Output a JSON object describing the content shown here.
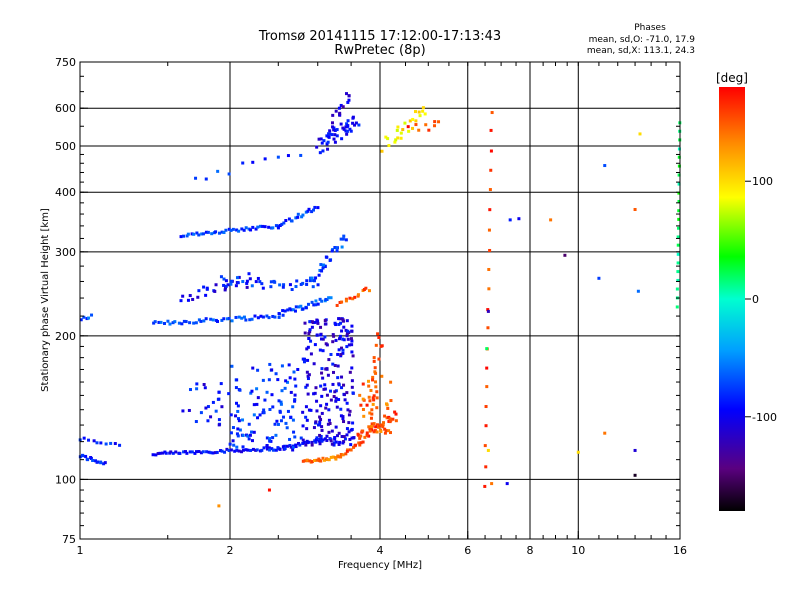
{
  "chart_data": {
    "type": "scatter",
    "title": "Tromsø 20141115 17:12:00-17:13:43",
    "subtitle": "RwPretec (8p)",
    "xlabel": "Frequency [MHz]",
    "ylabel": "Stationary phase Virtual Height [km]",
    "x_scale": "log",
    "y_scale": "log",
    "xlim": [
      1,
      16
    ],
    "ylim": [
      75,
      750
    ],
    "grid": true,
    "x_ticks": [
      {
        "value": 1,
        "label": "1"
      },
      {
        "value": 2,
        "label": "2"
      },
      {
        "value": 4,
        "label": "4"
      },
      {
        "value": 6,
        "label": "6"
      },
      {
        "value": 8,
        "label": "8"
      },
      {
        "value": 10,
        "label": "10"
      },
      {
        "value": 16,
        "label": "16"
      }
    ],
    "x_grid": [
      2,
      4,
      6,
      8,
      10
    ],
    "y_ticks": [
      {
        "value": 75,
        "label": "75"
      },
      {
        "value": 100,
        "label": "100"
      },
      {
        "value": 200,
        "label": "200"
      },
      {
        "value": 300,
        "label": "300"
      },
      {
        "value": 400,
        "label": "400"
      },
      {
        "value": 500,
        "label": "500"
      },
      {
        "value": 600,
        "label": "600"
      },
      {
        "value": 750,
        "label": "750"
      }
    ],
    "y_grid": [
      100,
      200,
      300,
      400,
      500,
      600
    ],
    "stats": {
      "title": "Phases",
      "line1": "mean, sd,O: -71.0, 17.9",
      "line2": "mean, sd,X: 113.1, 24.3"
    },
    "colorbar": {
      "label": "[deg]",
      "min": -180,
      "max": 180,
      "ticks": [
        {
          "value": 100,
          "label": "100"
        },
        {
          "value": 0,
          "label": "0"
        },
        {
          "value": -100,
          "label": "-100"
        }
      ]
    },
    "traces": [
      {
        "name": "",
        "f1": 1.0,
        "f2": 1.12,
        "h1": 112,
        "h2": 108,
        "n": 16,
        "phase": -85,
        "jitter": 0.02
      },
      {
        "name": "",
        "f1": 1.0,
        "f2": 1.2,
        "h1": 122,
        "h2": 118,
        "n": 10,
        "phase": -82,
        "jitter": 0.02
      },
      {
        "name": "",
        "f1": 1.4,
        "f2": 2.5,
        "h1": 113,
        "h2": 116,
        "n": 55,
        "phase": -96,
        "jitter": 0.015
      },
      {
        "name": "",
        "f1": 2.5,
        "f2": 3.2,
        "h1": 116,
        "h2": 122,
        "n": 25,
        "phase": -92,
        "jitter": 0.015
      },
      {
        "name": "",
        "f1": 2.8,
        "f2": 3.3,
        "h1": 109,
        "h2": 111,
        "n": 22,
        "phase": 140,
        "jitter": 0.015
      },
      {
        "name": "",
        "f1": 3.3,
        "f2": 3.7,
        "h1": 112,
        "h2": 120,
        "n": 16,
        "phase": 152,
        "jitter": 0.02
      },
      {
        "name": "",
        "f1": 3.6,
        "f2": 4.3,
        "h1": 122,
        "h2": 135,
        "n": 34,
        "phase": 160,
        "jitter": 0.05
      },
      {
        "name": "",
        "f1": 3.8,
        "f2": 4.0,
        "h1": 135,
        "h2": 200,
        "n": 22,
        "phase": 150,
        "jitter": 0.06
      },
      {
        "name": "",
        "f1": 1.4,
        "f2": 2.5,
        "h1": 212,
        "h2": 220,
        "n": 45,
        "phase": -75,
        "jitter": 0.02
      },
      {
        "name": "",
        "f1": 2.5,
        "f2": 3.2,
        "h1": 222,
        "h2": 240,
        "n": 30,
        "phase": -70,
        "jitter": 0.025
      },
      {
        "name": "",
        "f1": 1.6,
        "f2": 2.2,
        "h1": 240,
        "h2": 262,
        "n": 25,
        "phase": -100,
        "jitter": 0.06
      },
      {
        "name": "",
        "f1": 1.9,
        "f2": 3.0,
        "h1": 260,
        "h2": 255,
        "n": 35,
        "phase": -80,
        "jitter": 0.05
      },
      {
        "name": "",
        "f1": 2.9,
        "f2": 3.4,
        "h1": 260,
        "h2": 320,
        "n": 28,
        "phase": -70,
        "jitter": 0.05
      },
      {
        "name": "",
        "f1": 3.3,
        "f2": 3.8,
        "h1": 232,
        "h2": 250,
        "n": 14,
        "phase": 150,
        "jitter": 0.03
      },
      {
        "name": "",
        "f1": 1.0,
        "f2": 1.05,
        "h1": 215,
        "h2": 220,
        "n": 6,
        "phase": -70,
        "jitter": 0.02
      },
      {
        "name": "",
        "f1": 1.6,
        "f2": 2.5,
        "h1": 325,
        "h2": 340,
        "n": 40,
        "phase": -75,
        "jitter": 0.015
      },
      {
        "name": "",
        "f1": 2.5,
        "f2": 3.0,
        "h1": 340,
        "h2": 372,
        "n": 20,
        "phase": -78,
        "jitter": 0.02
      },
      {
        "name": "",
        "f1": 1.7,
        "f2": 2.8,
        "h1": 430,
        "h2": 475,
        "n": 10,
        "phase": -78,
        "jitter": 0.05
      },
      {
        "name": "",
        "f1": 3.0,
        "f2": 3.6,
        "h1": 500,
        "h2": 560,
        "n": 45,
        "phase": -95,
        "jitter": 0.08
      },
      {
        "name": "",
        "f1": 3.2,
        "f2": 3.5,
        "h1": 560,
        "h2": 650,
        "n": 15,
        "phase": -110,
        "jitter": 0.05
      },
      {
        "name": "",
        "f1": 4.1,
        "f2": 4.9,
        "h1": 500,
        "h2": 600,
        "n": 24,
        "phase": 95,
        "jitter": 0.07
      },
      {
        "name": "",
        "f1": 4.6,
        "f2": 5.3,
        "h1": 540,
        "h2": 555,
        "n": 8,
        "phase": 160,
        "jitter": 0.05
      },
      {
        "name": "",
        "f1": 6.5,
        "f2": 6.7,
        "h1": 97,
        "h2": 590,
        "n": 20,
        "phase": 160,
        "jitter": 0.01
      },
      {
        "name": "",
        "f1": 15.8,
        "f2": 16.0,
        "h1": 230,
        "h2": 560,
        "n": 22,
        "phase": 20,
        "jitter": 0.004
      }
    ],
    "clouds": [
      {
        "name": "",
        "f1": 2.0,
        "f2": 2.8,
        "h1": 115,
        "h2": 175,
        "n": 110,
        "phase": -80
      },
      {
        "name": "",
        "f1": 2.8,
        "f2": 3.55,
        "h1": 118,
        "h2": 220,
        "n": 220,
        "phase": -105
      },
      {
        "name": "",
        "f1": 1.6,
        "f2": 2.1,
        "h1": 130,
        "h2": 160,
        "n": 30,
        "phase": -90
      },
      {
        "name": "",
        "f1": 3.6,
        "f2": 4.3,
        "h1": 125,
        "h2": 165,
        "n": 40,
        "phase": 150
      }
    ],
    "points": [
      {
        "x": 1.9,
        "y": 88,
        "phase": 130
      },
      {
        "x": 2.4,
        "y": 95,
        "phase": 175
      },
      {
        "x": 6.6,
        "y": 225,
        "phase": -120
      },
      {
        "x": 6.7,
        "y": 98,
        "phase": 140
      },
      {
        "x": 7.2,
        "y": 98,
        "phase": -100
      },
      {
        "x": 7.3,
        "y": 350,
        "phase": -85
      },
      {
        "x": 7.6,
        "y": 352,
        "phase": -100
      },
      {
        "x": 8.8,
        "y": 350,
        "phase": 140
      },
      {
        "x": 9.4,
        "y": 295,
        "phase": -150
      },
      {
        "x": 11.0,
        "y": 264,
        "phase": -75
      },
      {
        "x": 11.3,
        "y": 455,
        "phase": -70
      },
      {
        "x": 11.3,
        "y": 125,
        "phase": 140
      },
      {
        "x": 13.0,
        "y": 102,
        "phase": -170
      },
      {
        "x": 13.0,
        "y": 115,
        "phase": -110
      },
      {
        "x": 13.0,
        "y": 368,
        "phase": 150
      },
      {
        "x": 13.2,
        "y": 248,
        "phase": -60
      },
      {
        "x": 13.3,
        "y": 530,
        "phase": 100
      },
      {
        "x": 10.0,
        "y": 114,
        "phase": 100
      },
      {
        "x": 6.55,
        "y": 188,
        "phase": 20
      },
      {
        "x": 6.6,
        "y": 115,
        "phase": 100
      }
    ]
  }
}
